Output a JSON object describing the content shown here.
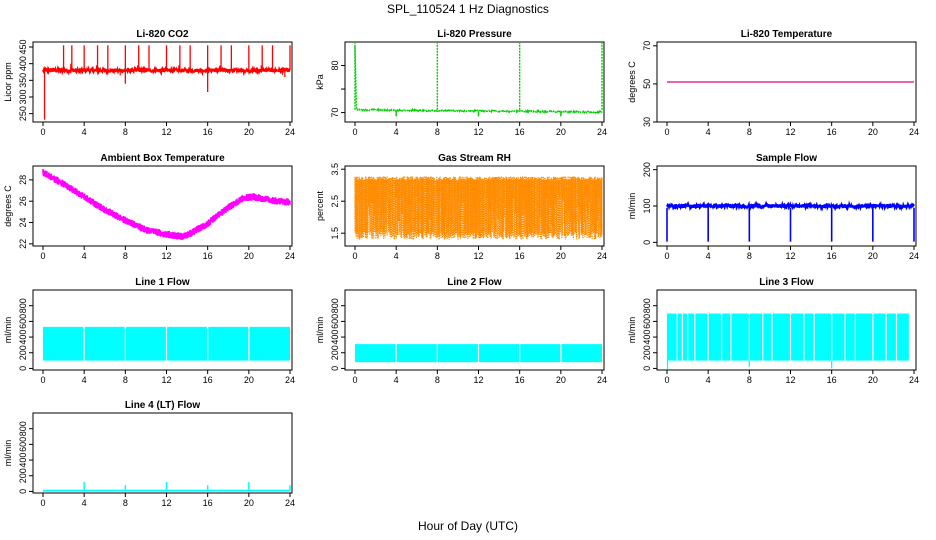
{
  "figure": {
    "title": "SPL_110524  1 Hz Diagnostics",
    "xlabel": "Hour of Day (UTC)"
  },
  "chart_data": [
    {
      "type": "line",
      "title": "Li-820 CO2",
      "ylabel": "Licor ppm",
      "color": "#ff0000",
      "x_ticks": [
        0,
        4,
        8,
        12,
        16,
        20,
        24
      ],
      "y_ticks": [
        250,
        300,
        350,
        400,
        450
      ],
      "xlim": [
        0,
        24
      ],
      "ylim": [
        225,
        465
      ],
      "series": [
        {
          "baseline": 380,
          "min": 232,
          "max": 455,
          "spikes_hours": [
            2,
            2.8,
            4,
            5.3,
            6.3,
            8,
            9.3,
            10.3,
            12,
            13.3,
            14.3,
            16,
            17.3,
            18.3,
            20,
            21.3,
            22.3,
            24
          ],
          "spike_value": 455,
          "dips": [
            [
              0.15,
              232
            ],
            [
              8,
              340
            ],
            [
              16,
              315
            ]
          ]
        }
      ]
    },
    {
      "type": "line",
      "title": "Li-820 Pressure",
      "ylabel": "kPa",
      "color": "#00cc00",
      "x_ticks": [
        0,
        4,
        8,
        12,
        16,
        20,
        24
      ],
      "y_ticks": [
        70,
        75,
        80
      ],
      "y_tick_labels": [
        "70",
        "",
        "80"
      ],
      "xlim": [
        0,
        24
      ],
      "ylim": [
        68,
        85
      ],
      "series": [
        {
          "start": 84,
          "baseline_start": 70.6,
          "baseline_end": 70.1,
          "spikes_hours": [
            0,
            8,
            16,
            24
          ],
          "spike_value": 85.5,
          "dips_hours": [
            4,
            12,
            20
          ],
          "dip_value": 69.2
        }
      ]
    },
    {
      "type": "line",
      "title": "Li-820 Temperature",
      "ylabel": "degrees C",
      "color": "#e4007c",
      "x_ticks": [
        0,
        4,
        8,
        12,
        16,
        20,
        24
      ],
      "y_ticks": [
        30,
        50,
        70
      ],
      "y_tick_labels": [
        "30",
        "50",
        "70"
      ],
      "xlim": [
        0,
        24
      ],
      "ylim": [
        30,
        72
      ],
      "series": [
        {
          "value": 51
        }
      ]
    },
    {
      "type": "line",
      "title": "Ambient Box Temperature",
      "ylabel": "degrees C",
      "color": "#ff00ff",
      "x_ticks": [
        0,
        4,
        8,
        12,
        16,
        20,
        24
      ],
      "y_ticks": [
        22,
        24,
        26,
        28
      ],
      "xlim": [
        0,
        24
      ],
      "ylim": [
        21.8,
        29.3
      ],
      "series": [
        {
          "knots": [
            [
              0,
              28.7
            ],
            [
              2,
              27.6
            ],
            [
              4,
              26.4
            ],
            [
              6,
              25.2
            ],
            [
              8,
              24.2
            ],
            [
              10,
              23.3
            ],
            [
              12,
              22.9
            ],
            [
              13.5,
              22.7
            ],
            [
              14,
              22.8
            ],
            [
              16,
              23.9
            ],
            [
              18,
              25.4
            ],
            [
              19.5,
              26.3
            ],
            [
              20.5,
              26.4
            ],
            [
              22,
              26.1
            ],
            [
              24,
              25.9
            ]
          ],
          "noise_amplitude": 0.35
        }
      ]
    },
    {
      "type": "line",
      "title": "Gas Stream RH",
      "ylabel": "percent",
      "color": "#ff8c00",
      "x_ticks": [
        0,
        4,
        8,
        12,
        16,
        20,
        24
      ],
      "y_ticks": [
        1.5,
        2.5,
        3.5
      ],
      "y_tick_labels": [
        "1.5",
        "2.5",
        "3.5"
      ],
      "xlim": [
        0,
        24
      ],
      "ylim": [
        1.1,
        3.6
      ],
      "series": [
        {
          "upper": 3.2,
          "lower": 1.3
        }
      ]
    },
    {
      "type": "line",
      "title": "Sample Flow",
      "ylabel": "ml/min",
      "color": "#0000ff",
      "x_ticks": [
        0,
        4,
        8,
        12,
        16,
        20,
        24
      ],
      "y_ticks": [
        0,
        100,
        200
      ],
      "y_tick_labels": [
        "0",
        "100",
        "200"
      ],
      "xlim": [
        0,
        24
      ],
      "ylim": [
        -10,
        210
      ],
      "series": [
        {
          "baseline": 100,
          "dips_hours": [
            0,
            4,
            8,
            12,
            16,
            20,
            24
          ],
          "dip_value": 2
        }
      ]
    },
    {
      "type": "area",
      "title": "Line 1 Flow",
      "ylabel": "ml/min",
      "color": "#00ffff",
      "x_ticks": [
        0,
        4,
        8,
        12,
        16,
        20,
        24
      ],
      "y_ticks": [
        0,
        200,
        400,
        600,
        800
      ],
      "xlim": [
        0,
        24
      ],
      "ylim": [
        -20,
        1000
      ],
      "series": [
        {
          "upper": 530,
          "lower": 100,
          "gaps_hours": [
            4,
            8,
            12,
            16,
            20
          ],
          "end_hour": 24
        }
      ]
    },
    {
      "type": "area",
      "title": "Line 2 Flow",
      "ylabel": "ml/min",
      "color": "#00ffff",
      "x_ticks": [
        0,
        4,
        8,
        12,
        16,
        20,
        24
      ],
      "y_ticks": [
        0,
        200,
        400,
        600,
        800
      ],
      "xlim": [
        0,
        24
      ],
      "ylim": [
        -20,
        1000
      ],
      "series": [
        {
          "upper": 310,
          "lower": 80,
          "gaps_hours": [
            4,
            8,
            12,
            16,
            20
          ],
          "end_hour": 24
        }
      ]
    },
    {
      "type": "area",
      "title": "Line 3 Flow",
      "ylabel": "ml/min",
      "color": "#00ffff",
      "x_ticks": [
        0,
        4,
        8,
        12,
        16,
        20,
        24
      ],
      "y_ticks": [
        0,
        200,
        400,
        600,
        800
      ],
      "xlim": [
        0,
        24
      ],
      "ylim": [
        -20,
        1000
      ],
      "series": [
        {
          "upper": 700,
          "lower": 100,
          "gaps_hours": [
            1,
            1.5,
            2,
            2.7,
            4,
            5.3,
            6.2,
            8,
            9.3,
            10.2,
            12,
            13.3,
            14.3,
            16,
            17.3,
            18.3,
            20,
            21.3,
            22.3
          ],
          "end_hour": 23.5,
          "dips": [
            [
              0.05,
              -10
            ],
            [
              8,
              20
            ],
            [
              16,
              0
            ]
          ]
        }
      ]
    },
    {
      "type": "line",
      "title": "Line 4 (LT) Flow",
      "ylabel": "ml/min",
      "color": "#00ffff",
      "x_ticks": [
        0,
        4,
        8,
        12,
        16,
        20,
        24
      ],
      "y_ticks": [
        0,
        200,
        400,
        600,
        800
      ],
      "xlim": [
        0,
        24
      ],
      "ylim": [
        -20,
        1000
      ],
      "series": [
        {
          "baseline": 10,
          "spikes_hours": [
            4,
            8,
            12,
            16,
            20,
            24
          ],
          "spike_values": [
            120,
            80,
            120,
            80,
            120,
            80
          ]
        }
      ]
    }
  ]
}
